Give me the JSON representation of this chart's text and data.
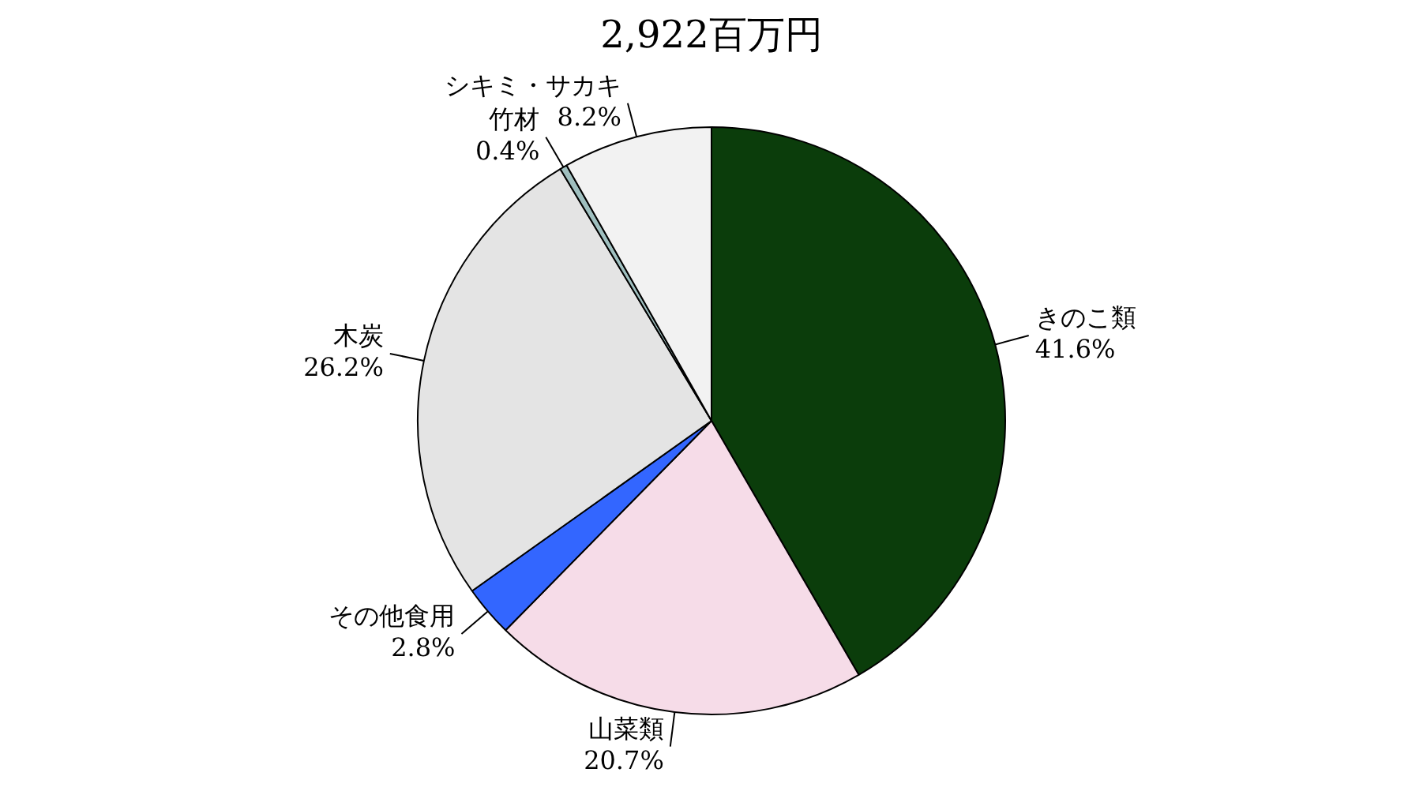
{
  "chart_data": {
    "type": "pie",
    "title": "2,922百万円",
    "categories": [
      "きのこ類",
      "山菜類",
      "その他食用",
      "木炭",
      "竹材",
      "シキミ・サカキ"
    ],
    "values": [
      41.6,
      20.7,
      2.8,
      26.2,
      0.4,
      8.2
    ],
    "value_labels": [
      "41.6%",
      "20.7%",
      "2.8%",
      "26.2%",
      "0.4%",
      "8.2%"
    ],
    "colors": [
      "#0b3d0b",
      "#f6dce8",
      "#3366ff",
      "#e4e4e4",
      "#9fbfbf",
      "#f2f2f2"
    ],
    "legend": false
  }
}
